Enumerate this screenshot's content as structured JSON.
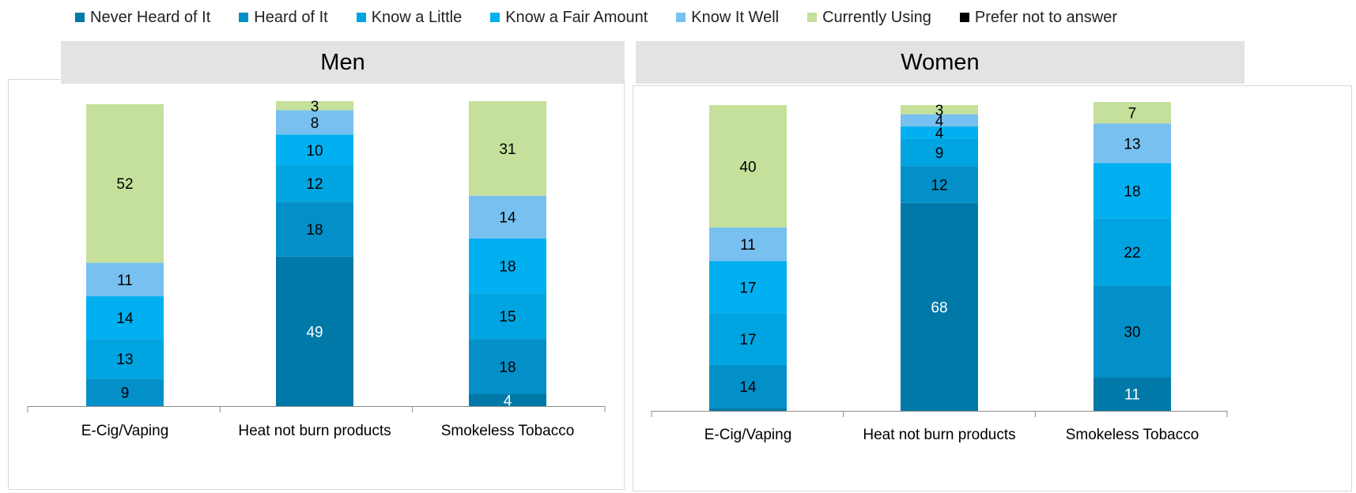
{
  "legend": [
    {
      "name": "Never Heard of It",
      "color": "#0079A8"
    },
    {
      "name": "Heard of It",
      "color": "#0390C8"
    },
    {
      "name": "Know a Little",
      "color": "#00A4E0"
    },
    {
      "name": "Know a Fair Amount",
      "color": "#00B0F0"
    },
    {
      "name": "Know It Well",
      "color": "#78C0F0"
    },
    {
      "name": "Currently Using",
      "color": "#C4E09A"
    },
    {
      "name": "Prefer not to answer",
      "color": "#000000"
    }
  ],
  "chart_data": [
    {
      "type": "bar",
      "stacked": true,
      "title": "Men",
      "categories": [
        "E-Cig/Vaping",
        "Heat not burn products",
        "Smokeless Tobacco"
      ],
      "ylim": [
        0,
        100
      ],
      "series": [
        {
          "name": "Never Heard of It",
          "values": [
            0,
            49,
            4
          ]
        },
        {
          "name": "Heard of It",
          "values": [
            9,
            18,
            18
          ]
        },
        {
          "name": "Know a Little",
          "values": [
            13,
            12,
            15
          ]
        },
        {
          "name": "Know a Fair Amount",
          "values": [
            14,
            10,
            18
          ]
        },
        {
          "name": "Know It Well",
          "values": [
            11,
            8,
            14
          ]
        },
        {
          "name": "Currently Using",
          "values": [
            52,
            3,
            31
          ]
        },
        {
          "name": "Prefer not to answer",
          "values": [
            0,
            0,
            0
          ]
        }
      ]
    },
    {
      "type": "bar",
      "stacked": true,
      "title": "Women",
      "categories": [
        "E-Cig/Vaping",
        "Heat not burn products",
        "Smokeless Tobacco"
      ],
      "ylim": [
        0,
        100
      ],
      "series": [
        {
          "name": "Never Heard of It",
          "values": [
            1,
            68,
            11
          ]
        },
        {
          "name": "Heard of It",
          "values": [
            14,
            12,
            30
          ]
        },
        {
          "name": "Know a Little",
          "values": [
            17,
            9,
            22
          ]
        },
        {
          "name": "Know a Fair Amount",
          "values": [
            17,
            4,
            18
          ]
        },
        {
          "name": "Know It Well",
          "values": [
            11,
            4,
            13
          ]
        },
        {
          "name": "Currently Using",
          "values": [
            40,
            3,
            7
          ]
        },
        {
          "name": "Prefer not to answer",
          "values": [
            0,
            0,
            0
          ]
        }
      ]
    }
  ]
}
